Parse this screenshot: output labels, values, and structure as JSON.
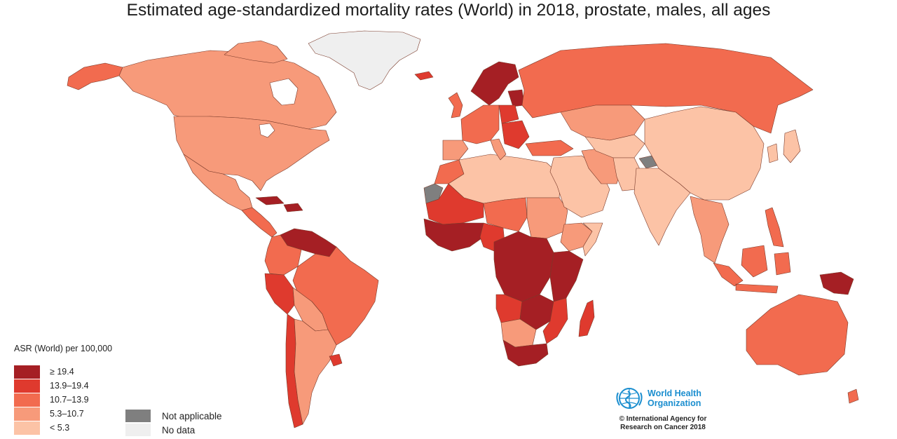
{
  "title": "Estimated age-standardized mortality rates (World) in 2018, prostate, males, all ages",
  "legend": {
    "title": "ASR (World) per 100,000",
    "classes": [
      {
        "label": "≥ 19.4",
        "color": "#a51f24"
      },
      {
        "label": "13.9–19.4",
        "color": "#df3a2e"
      },
      {
        "label": "10.7–13.9",
        "color": "#f26b4f"
      },
      {
        "label": "5.3–10.7",
        "color": "#f79a7a"
      },
      {
        "label": "< 5.3",
        "color": "#fcc3a6"
      }
    ],
    "extra": [
      {
        "label": "Not applicable",
        "color": "#7f7f7f"
      },
      {
        "label": "No data",
        "color": "#efefef"
      }
    ]
  },
  "credit": {
    "org_line1": "World Health",
    "org_line2": "Organization",
    "copyright_line1": "© International Agency for",
    "copyright_line2": "Research on Cancer 2018"
  },
  "map_regions": [
    {
      "region": "Greenland",
      "class": "No data"
    },
    {
      "region": "Canada",
      "class": "5.3–10.7"
    },
    {
      "region": "Alaska",
      "class": "10.7–13.9"
    },
    {
      "region": "United States",
      "class": "5.3–10.7"
    },
    {
      "region": "Mexico",
      "class": "5.3–10.7"
    },
    {
      "region": "Central America",
      "class": "10.7–13.9"
    },
    {
      "region": "Caribbean",
      "class": "≥ 19.4"
    },
    {
      "region": "Venezuela / Guianas",
      "class": "≥ 19.4"
    },
    {
      "region": "Colombia / Ecuador",
      "class": "10.7–13.9"
    },
    {
      "region": "Peru",
      "class": "13.9–19.4"
    },
    {
      "region": "Brazil",
      "class": "10.7–13.9"
    },
    {
      "region": "Bolivia / Paraguay",
      "class": "5.3–10.7"
    },
    {
      "region": "Chile",
      "class": "13.9–19.4"
    },
    {
      "region": "Argentina",
      "class": "5.3–10.7"
    },
    {
      "region": "Uruguay",
      "class": "13.9–19.4"
    },
    {
      "region": "Western Sahara",
      "class": "Not applicable"
    },
    {
      "region": "North Africa",
      "class": "< 5.3"
    },
    {
      "region": "Morocco",
      "class": "10.7–13.9"
    },
    {
      "region": "Mauritania / Mali",
      "class": "13.9–19.4"
    },
    {
      "region": "West Africa coast",
      "class": "≥ 19.4"
    },
    {
      "region": "Nigeria",
      "class": "13.9–19.4"
    },
    {
      "region": "Chad / Niger",
      "class": "10.7–13.9"
    },
    {
      "region": "Sudan",
      "class": "5.3–10.7"
    },
    {
      "region": "Ethiopia",
      "class": "5.3–10.7"
    },
    {
      "region": "Somalia",
      "class": "< 5.3"
    },
    {
      "region": "Central Africa",
      "class": "≥ 19.4"
    },
    {
      "region": "East Africa",
      "class": "≥ 19.4"
    },
    {
      "region": "Angola",
      "class": "13.9–19.4"
    },
    {
      "region": "Namibia / Botswana",
      "class": "5.3–10.7"
    },
    {
      "region": "Zambia / Zimbabwe",
      "class": "≥ 19.4"
    },
    {
      "region": "Mozambique",
      "class": "13.9–19.4"
    },
    {
      "region": "South Africa",
      "class": "≥ 19.4"
    },
    {
      "region": "Madagascar",
      "class": "13.9–19.4"
    },
    {
      "region": "Iceland",
      "class": "13.9–19.4"
    },
    {
      "region": "Nordics",
      "class": "≥ 19.4"
    },
    {
      "region": "Baltic states",
      "class": "≥ 19.4"
    },
    {
      "region": "United Kingdom / Ireland",
      "class": "10.7–13.9"
    },
    {
      "region": "Western Europe",
      "class": "10.7–13.9"
    },
    {
      "region": "Poland",
      "class": "13.9–19.4"
    },
    {
      "region": "Balkans",
      "class": "13.9–19.4"
    },
    {
      "region": "Iberia",
      "class": "5.3–10.7"
    },
    {
      "region": "Italy",
      "class": "5.3–10.7"
    },
    {
      "region": "Russia",
      "class": "10.7–13.9"
    },
    {
      "region": "Kazakhstan",
      "class": "5.3–10.7"
    },
    {
      "region": "Turkey",
      "class": "10.7–13.9"
    },
    {
      "region": "Middle East",
      "class": "< 5.3"
    },
    {
      "region": "Iran",
      "class": "5.3–10.7"
    },
    {
      "region": "Central Asia",
      "class": "< 5.3"
    },
    {
      "region": "Afghanistan / Pakistan",
      "class": "< 5.3"
    },
    {
      "region": "Kashmir",
      "class": "Not applicable"
    },
    {
      "region": "India",
      "class": "< 5.3"
    },
    {
      "region": "China / Mongolia",
      "class": "< 5.3"
    },
    {
      "region": "Korea / Japan",
      "class": "< 5.3"
    },
    {
      "region": "Southeast Asia",
      "class": "5.3–10.7"
    },
    {
      "region": "Philippines",
      "class": "10.7–13.9"
    },
    {
      "region": "Indonesia",
      "class": "10.7–13.9"
    },
    {
      "region": "Papua New Guinea",
      "class": "≥ 19.4"
    },
    {
      "region": "Australia",
      "class": "10.7–13.9"
    },
    {
      "region": "New Zealand",
      "class": "10.7–13.9"
    }
  ]
}
